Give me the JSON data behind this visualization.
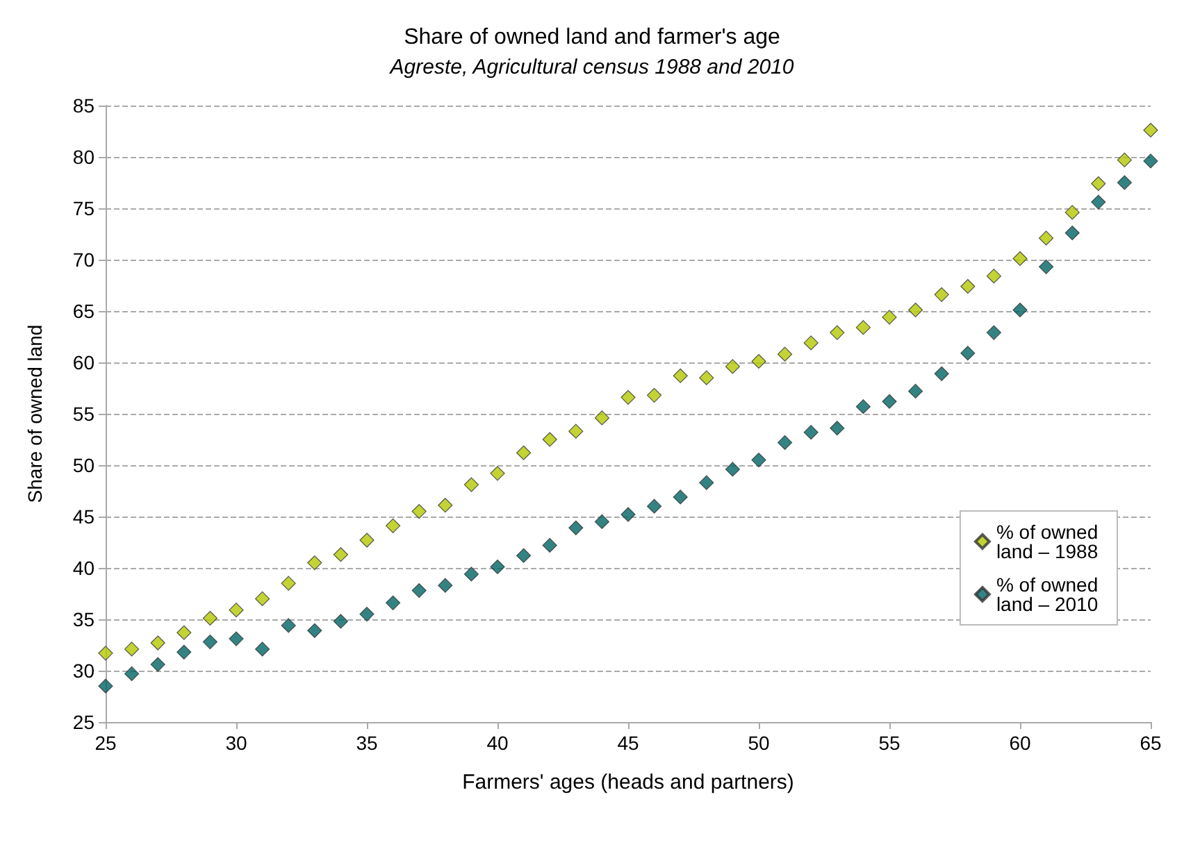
{
  "chart_data": {
    "type": "scatter",
    "title": "Share of owned land and farmer's age",
    "subtitle": "Agreste, Agricultural census 1988 and 2010",
    "xlabel": "Farmers' ages (heads and partners)",
    "ylabel": "Share of owned land",
    "x": [
      25,
      26,
      27,
      28,
      29,
      30,
      31,
      32,
      33,
      34,
      35,
      36,
      37,
      38,
      39,
      40,
      41,
      42,
      43,
      44,
      45,
      46,
      47,
      48,
      49,
      50,
      51,
      52,
      53,
      54,
      55,
      56,
      57,
      58,
      59,
      60,
      61,
      62,
      63,
      64,
      65
    ],
    "series": [
      {
        "name": "% of owned land – 1988",
        "color": "#b3c800",
        "values": [
          31.7,
          32.1,
          32.7,
          33.7,
          35.1,
          35.9,
          37.0,
          38.5,
          40.5,
          41.3,
          42.7,
          44.1,
          45.5,
          46.1,
          48.1,
          49.2,
          51.2,
          52.5,
          53.3,
          54.6,
          56.6,
          56.8,
          58.7,
          58.5,
          59.6,
          60.1,
          60.8,
          61.9,
          62.9,
          63.4,
          64.4,
          65.1,
          66.6,
          67.4,
          68.4,
          70.1,
          72.1,
          74.6,
          77.4,
          79.7,
          82.6
        ]
      },
      {
        "name": "% of owned land – 2010",
        "color": "#006464",
        "values": [
          28.5,
          29.7,
          30.6,
          31.8,
          32.8,
          33.1,
          32.1,
          34.4,
          33.9,
          34.8,
          35.5,
          36.6,
          37.8,
          38.3,
          39.4,
          40.1,
          41.2,
          42.2,
          43.9,
          44.5,
          45.2,
          46.0,
          46.9,
          48.3,
          49.6,
          50.5,
          52.2,
          53.2,
          53.6,
          55.7,
          56.2,
          57.2,
          58.9,
          60.9,
          62.9,
          65.1,
          69.3,
          72.6,
          75.6,
          77.5,
          79.6
        ]
      }
    ],
    "xlim": [
      25,
      65
    ],
    "xticks": [
      25,
      30,
      35,
      40,
      45,
      50,
      55,
      60,
      65
    ],
    "ylim": [
      25,
      85
    ],
    "yticks": [
      25,
      30,
      35,
      40,
      45,
      50,
      55,
      60,
      65,
      70,
      75,
      80,
      85
    ],
    "grid": "y",
    "legend": "right",
    "marker": "diamond"
  }
}
